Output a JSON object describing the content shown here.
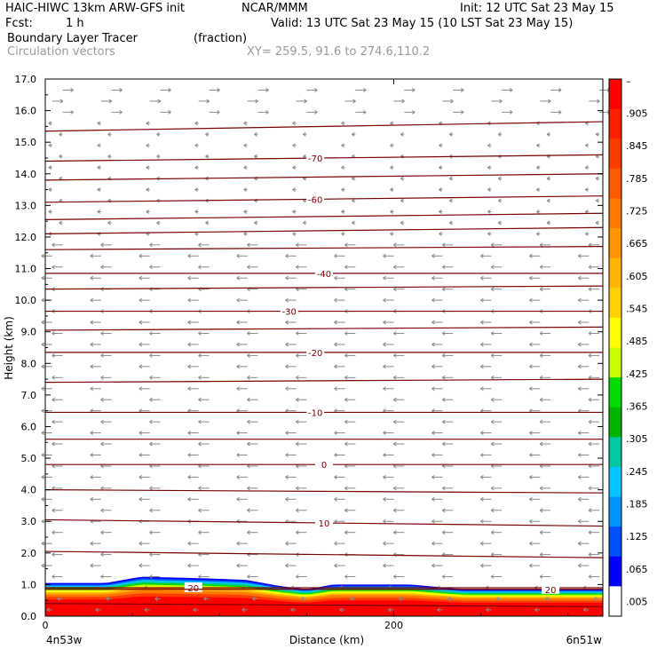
{
  "header": {
    "model": "HAIC-HIWC 13km ARW-GFS init",
    "org": "NCAR/MMM",
    "init": "Init: 12 UTC Sat 23 May 15",
    "fcst_label": "Fcst:",
    "fcst_value": "1 h",
    "valid": "Valid: 13 UTC Sat 23 May 15 (10 LST Sat 23 May 15)",
    "field": "Boundary Layer Tracer",
    "field_units": "(fraction)",
    "vectors": "Circulation vectors",
    "xy": "XY= 259.5, 91.6 to 274.6,110.2"
  },
  "chart_data": {
    "type": "heatmap",
    "xlabel": "Distance (km)",
    "ylabel": "Height (km)",
    "xlim": [
      0,
      320
    ],
    "ylim": [
      0,
      17
    ],
    "y_ticks": [
      "0.0",
      "1.0",
      "2.0",
      "3.0",
      "4.0",
      "5.0",
      "6.0",
      "7.0",
      "8.0",
      "9.0",
      "10.0",
      "11.0",
      "12.0",
      "13.0",
      "14.0",
      "15.0",
      "16.0",
      "17.0"
    ],
    "x_ticks": [
      {
        "value": 0,
        "label": "0"
      },
      {
        "value": 200,
        "label": "200"
      }
    ],
    "x_end_labels": {
      "left": "4n53w",
      "right": "6n51w"
    },
    "colorbar": {
      "labels": [
        "–",
        ".905",
        ".845",
        ".785",
        ".725",
        ".665",
        ".605",
        ".545",
        ".485",
        ".425",
        ".365",
        ".305",
        ".245",
        ".185",
        ".125",
        ".065",
        ".005"
      ],
      "colors": [
        "#ff0000",
        "#ff1e00",
        "#ff3c00",
        "#ff5a00",
        "#ff7800",
        "#ff9600",
        "#ffb400",
        "#ffd200",
        "#ffff00",
        "#c8ff00",
        "#00dc00",
        "#00b400",
        "#00c8a0",
        "#00c8ff",
        "#0096ff",
        "#0050ff",
        "#0000ff",
        "#ffffff"
      ]
    },
    "isotherms": [
      {
        "y": 0.35,
        "label": "",
        "slope": -0.05
      },
      {
        "y": 0.9,
        "label": "20",
        "label_x": 85
      },
      {
        "y": 0.85,
        "label": "20",
        "label_x": 290
      },
      {
        "y": 1.95,
        "label": "",
        "slope": -0.1
      },
      {
        "y": 2.95,
        "label": "10",
        "label_x": 160,
        "slope": -0.1
      },
      {
        "y": 3.95,
        "label": "",
        "slope": -0.05
      },
      {
        "y": 4.8,
        "label": "0",
        "label_x": 160
      },
      {
        "y": 5.6,
        "label": ""
      },
      {
        "y": 6.45,
        "label": "-10",
        "label_x": 155
      },
      {
        "y": 7.45,
        "label": "",
        "slope": 0.05
      },
      {
        "y": 8.35,
        "label": "-20",
        "label_x": 155
      },
      {
        "y": 9.1,
        "label": "",
        "slope": 0.05
      },
      {
        "y": 9.65,
        "label": "-30",
        "label_x": 140
      },
      {
        "y": 10.4,
        "label": "",
        "slope": 0.05
      },
      {
        "y": 10.85,
        "label": "-40",
        "label_x": 160
      },
      {
        "y": 11.65,
        "label": "",
        "slope": 0.05
      },
      {
        "y": 12.2,
        "label": "",
        "slope": 0.1
      },
      {
        "y": 12.65,
        "label": "",
        "slope": 0.1
      },
      {
        "y": 13.2,
        "label": "-60",
        "label_x": 155,
        "slope": 0.1
      },
      {
        "y": 13.9,
        "label": "",
        "slope": 0.1
      },
      {
        "y": 14.5,
        "label": "-70",
        "label_x": 155,
        "slope": 0.1
      },
      {
        "y": 15.5,
        "label": "",
        "slope": 0.15
      }
    ],
    "pbl_top_km": [
      [
        0,
        1.05
      ],
      [
        35,
        1.05
      ],
      [
        55,
        1.25
      ],
      [
        90,
        1.2
      ],
      [
        115,
        1.15
      ],
      [
        135,
        0.95
      ],
      [
        150,
        0.85
      ],
      [
        165,
        1.0
      ],
      [
        210,
        1.0
      ],
      [
        240,
        0.85
      ],
      [
        280,
        0.85
      ],
      [
        320,
        0.85
      ]
    ]
  }
}
